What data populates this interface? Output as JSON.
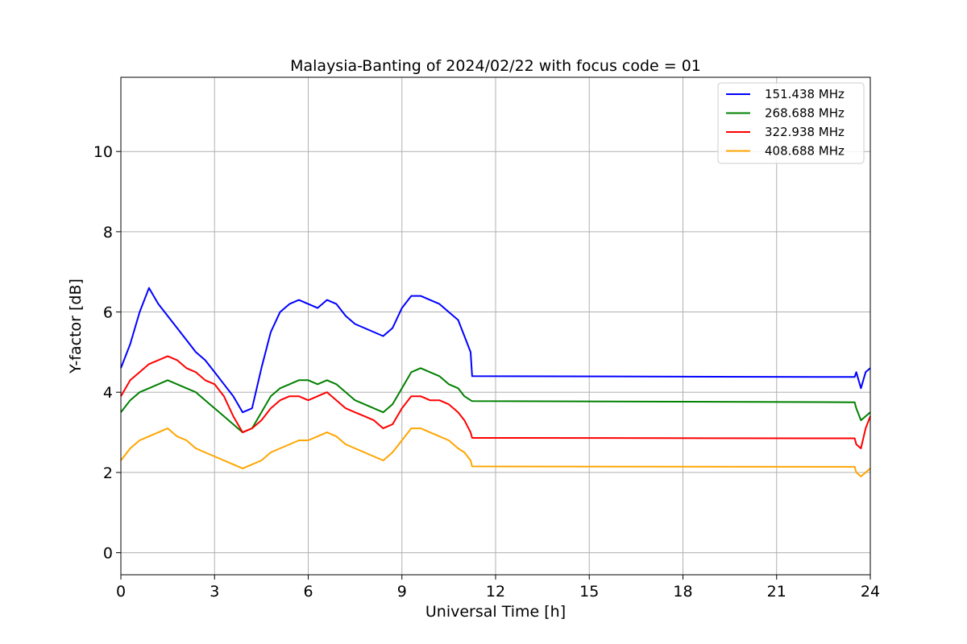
{
  "chart_data": {
    "type": "line",
    "title": "Malaysia-Banting of 2024/02/22 with focus code = 01",
    "xlabel": "Universal Time [h]",
    "ylabel": "Y-factor [dB]",
    "xlim": [
      0,
      24
    ],
    "ylim": [
      -0.55,
      11.85
    ],
    "xticks": [
      0,
      3,
      6,
      9,
      12,
      15,
      18,
      21,
      24
    ],
    "yticks": [
      0,
      2,
      4,
      6,
      8,
      10
    ],
    "grid": true,
    "legend_position": "top-right",
    "series": [
      {
        "name": "151.438 MHz",
        "color": "#0000ff",
        "x": [
          0.0,
          0.3,
          0.6,
          0.9,
          1.2,
          1.5,
          1.8,
          2.1,
          2.4,
          2.7,
          3.0,
          3.3,
          3.6,
          3.9,
          4.2,
          4.5,
          4.8,
          5.1,
          5.4,
          5.7,
          6.0,
          6.3,
          6.6,
          6.9,
          7.2,
          7.5,
          7.8,
          8.1,
          8.4,
          8.7,
          9.0,
          9.3,
          9.6,
          9.9,
          10.2,
          10.5,
          10.8,
          11.0,
          11.2,
          11.25,
          23.5,
          23.55,
          23.7,
          23.85,
          24.0
        ],
        "y": [
          4.6,
          5.2,
          6.0,
          6.6,
          6.2,
          5.9,
          5.6,
          5.3,
          5.0,
          4.8,
          4.5,
          4.2,
          3.9,
          3.5,
          3.6,
          4.6,
          5.5,
          6.0,
          6.2,
          6.3,
          6.2,
          6.1,
          6.3,
          6.2,
          5.9,
          5.7,
          5.6,
          5.5,
          5.4,
          5.6,
          6.1,
          6.4,
          6.4,
          6.3,
          6.2,
          6.0,
          5.8,
          5.4,
          5.0,
          4.4,
          4.38,
          4.5,
          4.1,
          4.5,
          4.6
        ]
      },
      {
        "name": "268.688 MHz",
        "color": "#008000",
        "x": [
          0.0,
          0.3,
          0.6,
          0.9,
          1.2,
          1.5,
          1.8,
          2.1,
          2.4,
          2.7,
          3.0,
          3.3,
          3.6,
          3.9,
          4.2,
          4.5,
          4.8,
          5.1,
          5.4,
          5.7,
          6.0,
          6.3,
          6.6,
          6.9,
          7.2,
          7.5,
          7.8,
          8.1,
          8.4,
          8.7,
          9.0,
          9.3,
          9.6,
          9.9,
          10.2,
          10.5,
          10.8,
          11.0,
          11.2,
          11.25,
          23.5,
          23.55,
          23.7,
          23.85,
          24.0
        ],
        "y": [
          3.5,
          3.8,
          4.0,
          4.1,
          4.2,
          4.3,
          4.2,
          4.1,
          4.0,
          3.8,
          3.6,
          3.4,
          3.2,
          3.0,
          3.1,
          3.5,
          3.9,
          4.1,
          4.2,
          4.3,
          4.3,
          4.2,
          4.3,
          4.2,
          4.0,
          3.8,
          3.7,
          3.6,
          3.5,
          3.7,
          4.1,
          4.5,
          4.6,
          4.5,
          4.4,
          4.2,
          4.1,
          3.9,
          3.8,
          3.78,
          3.75,
          3.6,
          3.3,
          3.4,
          3.5
        ]
      },
      {
        "name": "322.938 MHz",
        "color": "#ff0000",
        "x": [
          0.0,
          0.3,
          0.6,
          0.9,
          1.2,
          1.5,
          1.8,
          2.1,
          2.4,
          2.7,
          3.0,
          3.3,
          3.6,
          3.9,
          4.2,
          4.5,
          4.8,
          5.1,
          5.4,
          5.7,
          6.0,
          6.3,
          6.6,
          6.9,
          7.2,
          7.5,
          7.8,
          8.1,
          8.4,
          8.7,
          9.0,
          9.3,
          9.6,
          9.9,
          10.2,
          10.5,
          10.8,
          11.0,
          11.2,
          11.25,
          23.5,
          23.55,
          23.7,
          23.85,
          24.0
        ],
        "y": [
          3.9,
          4.3,
          4.5,
          4.7,
          4.8,
          4.9,
          4.8,
          4.6,
          4.5,
          4.3,
          4.2,
          3.9,
          3.4,
          3.0,
          3.1,
          3.3,
          3.6,
          3.8,
          3.9,
          3.9,
          3.8,
          3.9,
          4.0,
          3.8,
          3.6,
          3.5,
          3.4,
          3.3,
          3.1,
          3.2,
          3.6,
          3.9,
          3.9,
          3.8,
          3.8,
          3.7,
          3.5,
          3.3,
          3.0,
          2.86,
          2.85,
          2.7,
          2.6,
          3.1,
          3.4
        ]
      },
      {
        "name": "408.688 MHz",
        "color": "#ffa500",
        "x": [
          0.0,
          0.3,
          0.6,
          0.9,
          1.2,
          1.5,
          1.8,
          2.1,
          2.4,
          2.7,
          3.0,
          3.3,
          3.6,
          3.9,
          4.2,
          4.5,
          4.8,
          5.1,
          5.4,
          5.7,
          6.0,
          6.3,
          6.6,
          6.9,
          7.2,
          7.5,
          7.8,
          8.1,
          8.4,
          8.7,
          9.0,
          9.3,
          9.6,
          9.9,
          10.2,
          10.5,
          10.8,
          11.0,
          11.2,
          11.25,
          23.5,
          23.55,
          23.7,
          23.85,
          24.0
        ],
        "y": [
          2.3,
          2.6,
          2.8,
          2.9,
          3.0,
          3.1,
          2.9,
          2.8,
          2.6,
          2.5,
          2.4,
          2.3,
          2.2,
          2.1,
          2.2,
          2.3,
          2.5,
          2.6,
          2.7,
          2.8,
          2.8,
          2.9,
          3.0,
          2.9,
          2.7,
          2.6,
          2.5,
          2.4,
          2.3,
          2.5,
          2.8,
          3.1,
          3.1,
          3.0,
          2.9,
          2.8,
          2.6,
          2.5,
          2.3,
          2.15,
          2.14,
          2.0,
          1.9,
          2.0,
          2.1
        ]
      }
    ]
  }
}
